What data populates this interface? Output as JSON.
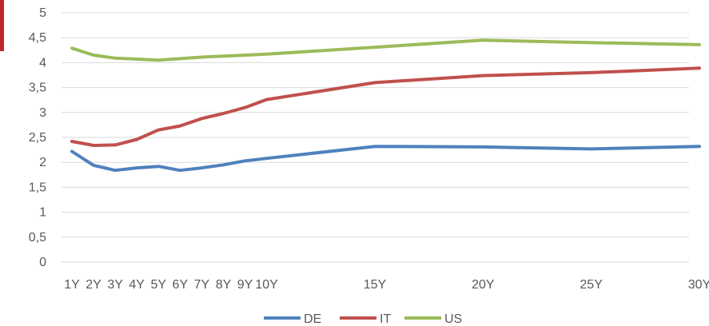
{
  "chart_data": {
    "type": "line",
    "categories": [
      "1Y",
      "2Y",
      "3Y",
      "4Y",
      "5Y",
      "6Y",
      "7Y",
      "8Y",
      "9Y",
      "10Y",
      "15Y",
      "20Y",
      "25Y",
      "30Y"
    ],
    "x_years": [
      1,
      2,
      3,
      4,
      5,
      6,
      7,
      8,
      9,
      10,
      15,
      20,
      25,
      30
    ],
    "x_tick_labels": [
      "1Y",
      "2Y",
      "3Y",
      "4Y",
      "5Y",
      "6Y",
      "7Y",
      "8Y",
      "9Y",
      "10Y",
      "15Y",
      "20Y",
      "25Y",
      "30Y"
    ],
    "y_tick_labels": [
      "0",
      "0,5",
      "1",
      "1,5",
      "2",
      "2,5",
      "3",
      "3,5",
      "4",
      "4,5",
      "5"
    ],
    "ylim": [
      0,
      5
    ],
    "y_step": 0.5,
    "grid": true,
    "legend_position": "bottom",
    "series": [
      {
        "name": "DE",
        "color": "#4f81bd",
        "values": [
          2.22,
          1.94,
          1.84,
          1.89,
          1.92,
          1.84,
          1.89,
          1.95,
          2.03,
          2.08,
          2.32,
          2.31,
          2.27,
          2.32
        ]
      },
      {
        "name": "IT",
        "color": "#c0504d",
        "values": [
          2.42,
          2.34,
          2.35,
          2.46,
          2.65,
          2.73,
          2.88,
          2.98,
          3.1,
          3.26,
          3.6,
          3.74,
          3.8,
          3.89
        ]
      },
      {
        "name": "US",
        "color": "#9bbb59",
        "values": [
          4.29,
          4.15,
          4.09,
          4.07,
          4.05,
          4.08,
          4.11,
          4.13,
          4.15,
          4.17,
          4.31,
          4.45,
          4.4,
          4.36
        ]
      }
    ],
    "title": "",
    "xlabel": "",
    "ylabel": ""
  },
  "decoration": {
    "accent_color": "#c0272d"
  }
}
